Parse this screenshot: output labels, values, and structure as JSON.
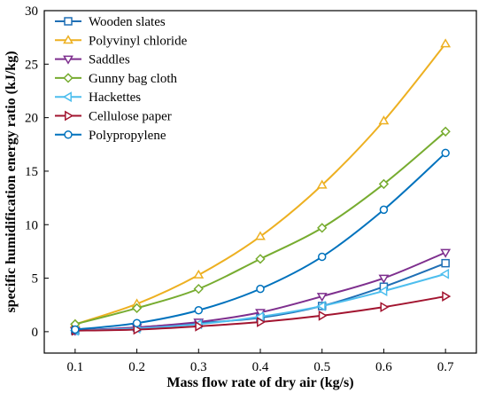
{
  "chart_data": {
    "type": "line",
    "title": "",
    "xlabel": "Mass flow rate of dry air (kg/s)",
    "ylabel": "specific humidification energy ratio (kJ/kg)",
    "x": [
      0.1,
      0.2,
      0.3,
      0.4,
      0.5,
      0.6,
      0.7
    ],
    "x_ticks": [
      "0.1",
      "0.2",
      "0.3",
      "0.4",
      "0.5",
      "0.6",
      "0.7"
    ],
    "y_ticks": [
      "0",
      "5",
      "10",
      "15",
      "20",
      "25",
      "30"
    ],
    "xlim": [
      0.05,
      0.75
    ],
    "ylim": [
      -2,
      30
    ],
    "grid": false,
    "legend_position": "top-left",
    "series": [
      {
        "name": "Wooden slates",
        "marker": "square",
        "color": "#1f6fb5",
        "values": [
          0.1,
          0.4,
          0.8,
          1.3,
          2.4,
          4.2,
          6.4
        ]
      },
      {
        "name": "Polyvinyl chloride",
        "marker": "triangle-up",
        "color": "#edb021",
        "values": [
          0.7,
          2.6,
          5.3,
          8.9,
          13.7,
          19.7,
          26.9
        ]
      },
      {
        "name": "Saddles",
        "marker": "triangle-down",
        "color": "#7e2f8e",
        "values": [
          0.1,
          0.4,
          0.9,
          1.8,
          3.3,
          5.0,
          7.4
        ]
      },
      {
        "name": "Gunny bag cloth",
        "marker": "diamond",
        "color": "#77ac30",
        "values": [
          0.7,
          2.2,
          4.0,
          6.8,
          9.7,
          13.8,
          18.7
        ]
      },
      {
        "name": "Hackettes",
        "marker": "triangle-left",
        "color": "#4dbeee",
        "values": [
          0.1,
          0.3,
          0.7,
          1.4,
          2.4,
          3.8,
          5.4
        ]
      },
      {
        "name": "Cellulose paper",
        "marker": "triangle-right",
        "color": "#a2142f",
        "values": [
          0.1,
          0.2,
          0.5,
          0.9,
          1.5,
          2.3,
          3.3
        ]
      },
      {
        "name": "Polypropylene",
        "marker": "circle",
        "color": "#0072bd",
        "values": [
          0.2,
          0.8,
          2.0,
          4.0,
          7.0,
          11.4,
          16.7
        ]
      }
    ]
  }
}
